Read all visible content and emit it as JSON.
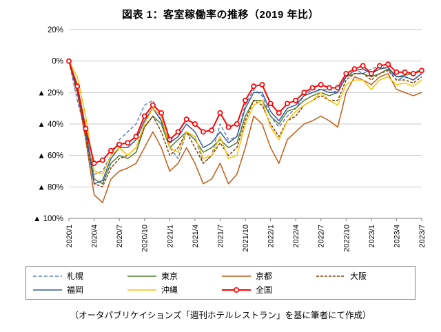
{
  "chart_data": {
    "type": "line",
    "title": "図表 1：客室稼働率の推移（2019 年比）",
    "xlabel": "",
    "ylabel": "",
    "ylim": [
      -100,
      20
    ],
    "grid": true,
    "legend_position": "bottom",
    "y_tick_values": [
      20,
      0,
      -20,
      -40,
      -60,
      -80,
      -100
    ],
    "y_tick_labels": [
      "20%",
      "0%",
      "▲ 20%",
      "▲ 40%",
      "▲ 60%",
      "▲ 80%",
      "▲ 100%"
    ],
    "x_tick_every": 3,
    "categories": [
      "2020/1",
      "2020/2",
      "2020/3",
      "2020/4",
      "2020/5",
      "2020/6",
      "2020/7",
      "2020/8",
      "2020/9",
      "2020/10",
      "2020/11",
      "2020/12",
      "2021/1",
      "2021/2",
      "2021/3",
      "2021/4",
      "2021/5",
      "2021/6",
      "2021/7",
      "2021/8",
      "2021/9",
      "2021/10",
      "2021/11",
      "2021/12",
      "2022/1",
      "2022/2",
      "2022/3",
      "2022/4",
      "2022/5",
      "2022/6",
      "2022/7",
      "2022/8",
      "2022/9",
      "2022/10",
      "2022/11",
      "2022/12",
      "2023/1",
      "2023/2",
      "2023/3",
      "2023/4",
      "2023/5",
      "2023/6",
      "2023/7"
    ],
    "series": [
      {
        "name": "札幌",
        "color": "#5A7FC0",
        "dash": "5,3",
        "marker": false,
        "values": [
          0,
          -25,
          -45,
          -72,
          -70,
          -60,
          -50,
          -45,
          -40,
          -28,
          -25,
          -38,
          -55,
          -62,
          -45,
          -48,
          -65,
          -60,
          -40,
          -50,
          -48,
          -28,
          -18,
          -22,
          -35,
          -42,
          -35,
          -30,
          -22,
          -18,
          -18,
          -18,
          -20,
          -8,
          -5,
          -8,
          -5,
          -3,
          -5,
          -12,
          -10,
          -12,
          -8
        ]
      },
      {
        "name": "東京",
        "color": "#4E7E32",
        "dash": "",
        "marker": false,
        "values": [
          0,
          -15,
          -45,
          -75,
          -78,
          -65,
          -60,
          -62,
          -58,
          -42,
          -35,
          -40,
          -55,
          -50,
          -45,
          -50,
          -58,
          -55,
          -50,
          -55,
          -52,
          -35,
          -25,
          -25,
          -35,
          -40,
          -32,
          -30,
          -25,
          -22,
          -20,
          -22,
          -20,
          -10,
          -8,
          -8,
          -10,
          -8,
          -5,
          -10,
          -9,
          -8,
          -5
        ]
      },
      {
        "name": "京都",
        "color": "#C55A11",
        "dash": "",
        "marker": false,
        "values": [
          0,
          -20,
          -50,
          -85,
          -90,
          -75,
          -70,
          -68,
          -65,
          -55,
          -45,
          -55,
          -70,
          -65,
          -55,
          -65,
          -78,
          -75,
          -65,
          -78,
          -72,
          -55,
          -35,
          -40,
          -55,
          -65,
          -50,
          -45,
          -40,
          -38,
          -35,
          -38,
          -42,
          -20,
          -10,
          -12,
          -15,
          -10,
          -8,
          -18,
          -20,
          -22,
          -20
        ]
      },
      {
        "name": "大阪",
        "color": "#833C00",
        "dash": "4,2",
        "marker": false,
        "values": [
          0,
          -20,
          -48,
          -78,
          -80,
          -68,
          -62,
          -60,
          -55,
          -42,
          -35,
          -45,
          -60,
          -55,
          -45,
          -55,
          -65,
          -60,
          -52,
          -60,
          -55,
          -38,
          -25,
          -28,
          -40,
          -48,
          -38,
          -35,
          -28,
          -25,
          -22,
          -25,
          -25,
          -12,
          -8,
          -8,
          -12,
          -8,
          -6,
          -12,
          -12,
          -14,
          -10
        ]
      },
      {
        "name": "福岡",
        "color": "#33589B",
        "dash": "",
        "marker": false,
        "values": [
          0,
          -18,
          -45,
          -78,
          -76,
          -62,
          -55,
          -55,
          -50,
          -38,
          -30,
          -38,
          -52,
          -48,
          -40,
          -45,
          -55,
          -52,
          -45,
          -52,
          -48,
          -30,
          -20,
          -20,
          -32,
          -38,
          -30,
          -28,
          -22,
          -20,
          -18,
          -20,
          -20,
          -10,
          -6,
          -5,
          -8,
          -5,
          -4,
          -10,
          -10,
          -12,
          -8
        ]
      },
      {
        "name": "沖縄",
        "color": "#FFC000",
        "dash": "",
        "marker": false,
        "values": [
          0,
          -10,
          -35,
          -70,
          -72,
          -60,
          -55,
          -60,
          -55,
          -40,
          -30,
          -35,
          -55,
          -58,
          -45,
          -48,
          -62,
          -60,
          -48,
          -62,
          -60,
          -40,
          -28,
          -25,
          -42,
          -50,
          -38,
          -32,
          -28,
          -25,
          -20,
          -25,
          -28,
          -15,
          -12,
          -12,
          -18,
          -12,
          -10,
          -15,
          -14,
          -16,
          -12
        ]
      },
      {
        "name": "全国",
        "color": "#FF0000",
        "dash": "",
        "marker": true,
        "values": [
          0,
          -16,
          -43,
          -65,
          -63,
          -57,
          -53,
          -52,
          -48,
          -35,
          -28,
          -33,
          -50,
          -45,
          -37,
          -40,
          -45,
          -44,
          -33,
          -42,
          -40,
          -25,
          -16,
          -15,
          -27,
          -33,
          -27,
          -25,
          -20,
          -17,
          -15,
          -17,
          -17,
          -8,
          -5,
          -3,
          -8,
          -3,
          -2,
          -7,
          -7,
          -8,
          -6
        ]
      }
    ],
    "colors": {
      "gridline": "#C9C9C9",
      "axis": "#7F7F7F"
    }
  },
  "footer": {
    "note": "（オータパブリケイションズ「週刊ホテルレストラン」を基に筆者にて作成）"
  }
}
